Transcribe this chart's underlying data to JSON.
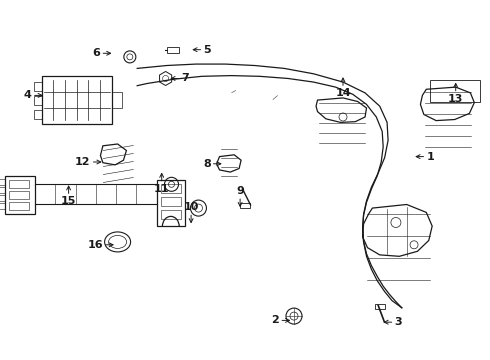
{
  "bg_color": "#ffffff",
  "line_color": "#1a1a1a",
  "fig_width": 4.9,
  "fig_height": 3.6,
  "dpi": 100,
  "labels": [
    {
      "num": "1",
      "xf": 0.87,
      "yf": 0.435,
      "adx": -1,
      "ady": 0
    },
    {
      "num": "2",
      "xf": 0.57,
      "yf": 0.89,
      "adx": 1,
      "ady": 0
    },
    {
      "num": "3",
      "xf": 0.805,
      "yf": 0.895,
      "adx": -1,
      "ady": 0
    },
    {
      "num": "4",
      "xf": 0.065,
      "yf": 0.265,
      "adx": 1,
      "ady": 0
    },
    {
      "num": "5",
      "xf": 0.415,
      "yf": 0.138,
      "adx": -1,
      "ady": 0
    },
    {
      "num": "6",
      "xf": 0.205,
      "yf": 0.148,
      "adx": 1,
      "ady": 0
    },
    {
      "num": "7",
      "xf": 0.37,
      "yf": 0.218,
      "adx": -1,
      "ady": 0
    },
    {
      "num": "8",
      "xf": 0.43,
      "yf": 0.455,
      "adx": 1,
      "ady": 0
    },
    {
      "num": "9",
      "xf": 0.49,
      "yf": 0.545,
      "adx": 0,
      "ady": 1
    },
    {
      "num": "10",
      "xf": 0.39,
      "yf": 0.59,
      "adx": 0,
      "ady": 1
    },
    {
      "num": "11",
      "xf": 0.33,
      "yf": 0.51,
      "adx": 0,
      "ady": -1
    },
    {
      "num": "12",
      "xf": 0.185,
      "yf": 0.45,
      "adx": 1,
      "ady": 0
    },
    {
      "num": "13",
      "xf": 0.93,
      "yf": 0.26,
      "adx": 0,
      "ady": -1
    },
    {
      "num": "14",
      "xf": 0.7,
      "yf": 0.245,
      "adx": 0,
      "ady": -1
    },
    {
      "num": "15",
      "xf": 0.14,
      "yf": 0.545,
      "adx": 0,
      "ady": -1
    },
    {
      "num": "16",
      "xf": 0.21,
      "yf": 0.68,
      "adx": 1,
      "ady": 0
    }
  ]
}
